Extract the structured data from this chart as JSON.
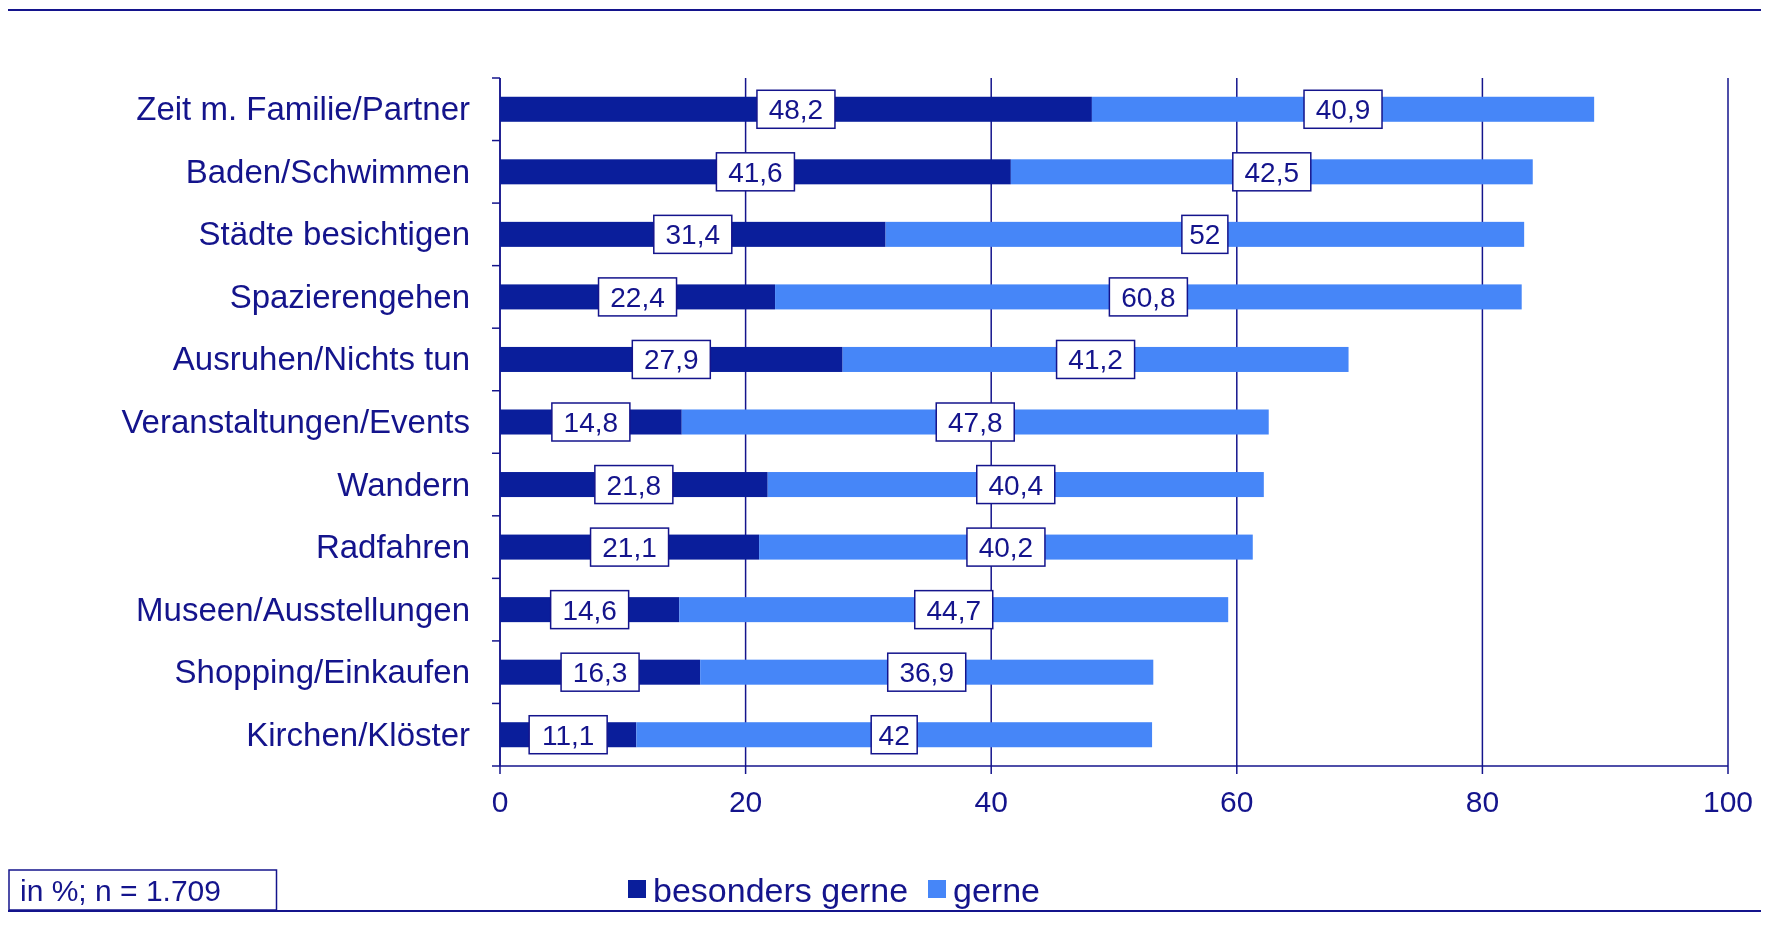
{
  "chart_data": {
    "type": "bar",
    "orientation": "horizontal",
    "stacked": true,
    "categories": [
      "Zeit m. Familie/Partner",
      "Baden/Schwimmen",
      "Städte besichtigen",
      "Spazierengehen",
      "Ausruhen/Nichts tun",
      "Veranstaltungen/Events",
      "Wandern",
      "Radfahren",
      "Museen/Ausstellungen",
      "Shopping/Einkaufen",
      "Kirchen/Klöster"
    ],
    "series": [
      {
        "name": "besonders gerne",
        "color": "#0a1e9b",
        "values": [
          48.2,
          41.6,
          31.4,
          22.4,
          27.9,
          14.8,
          21.8,
          21.1,
          14.6,
          16.3,
          11.1
        ],
        "value_labels": [
          "48,2",
          "41,6",
          "31,4",
          "22,4",
          "27,9",
          "14,8",
          "21,8",
          "21,1",
          "14,6",
          "16,3",
          "11,1"
        ]
      },
      {
        "name": "gerne",
        "color": "#4686f8",
        "values": [
          40.9,
          42.5,
          52,
          60.8,
          41.2,
          47.8,
          40.4,
          40.2,
          44.7,
          36.9,
          42
        ],
        "value_labels": [
          "40,9",
          "42,5",
          "52",
          "60,8",
          "41,2",
          "47,8",
          "40,4",
          "40,2",
          "44,7",
          "36,9",
          "42"
        ]
      }
    ],
    "xlim": [
      0,
      100
    ],
    "xticks": [
      0,
      20,
      40,
      60,
      80,
      100
    ],
    "grid": "x",
    "legend": "bottom",
    "annotations": [
      "in %; n = 1.709"
    ]
  }
}
